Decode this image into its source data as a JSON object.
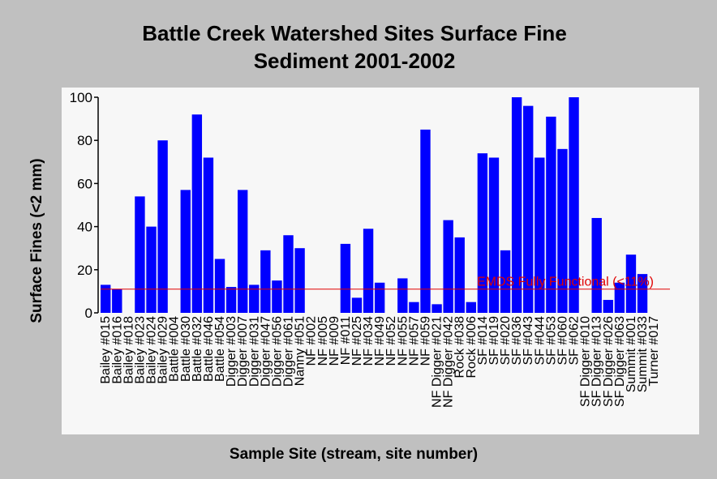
{
  "chart_data": {
    "type": "bar",
    "title_line1": "Battle Creek Watershed Sites Surface Fine",
    "title_line2": "Sediment 2001-2002",
    "xlabel": "Sample Site (stream, site number)",
    "ylabel": "Surface Fines (<2 mm)",
    "ylim": [
      0,
      100
    ],
    "yticks": [
      0,
      20,
      40,
      60,
      80,
      100
    ],
    "grid": false,
    "bar_color": "#0000ff",
    "categories": [
      "Bailey #015",
      "Bailey #016",
      "Bailey #018",
      "Bailey #023",
      "Bailey #024",
      "Bailey #029",
      "Battle #004",
      "Battle #030",
      "Battle #032",
      "Battle #046",
      "Battle #054",
      "Digger #003",
      "Digger #007",
      "Digger #031",
      "Digger #047",
      "Digger #056",
      "Digger #061",
      "Nanny #051",
      "NF #002",
      "NF #005",
      "NF #009",
      "NF #011",
      "NF #025",
      "NF #034",
      "NF #049",
      "NF #052",
      "NF #055",
      "NF #057",
      "NF #059",
      "NF Digger #021",
      "NF Digger #042",
      "Rock #038",
      "Rock #006",
      "SF #014",
      "SF #019",
      "SF #020",
      "SF #036",
      "SF #043",
      "SF #044",
      "SF #053",
      "SF #060",
      "SF #062",
      "SF Digger #010",
      "SF Digger #013",
      "SF Digger #026",
      "SF Digger #063",
      "Summit #001",
      "Summit #033",
      "Turner #017"
    ],
    "values": [
      13,
      11,
      0,
      54,
      40,
      80,
      0,
      57,
      92,
      72,
      25,
      12,
      57,
      13,
      29,
      15,
      36,
      30,
      0,
      0,
      0,
      32,
      7,
      39,
      14,
      0,
      16,
      5,
      85,
      4,
      43,
      35,
      5,
      74,
      72,
      29,
      100,
      96,
      72,
      91,
      76,
      100,
      0,
      44,
      6,
      14,
      27,
      18,
      0
    ],
    "reference_line": {
      "value": 11,
      "label": "EMDS Fully Functional (<11%)",
      "color": "#e00000"
    }
  }
}
